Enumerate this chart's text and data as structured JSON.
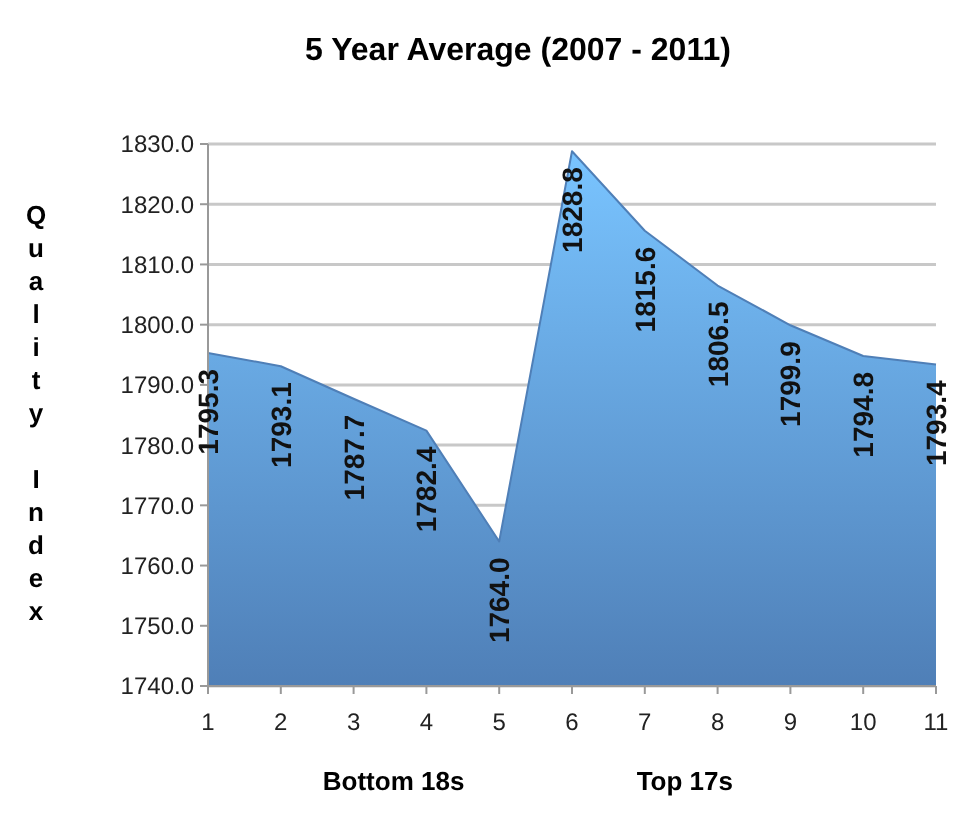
{
  "chart_data": {
    "type": "area",
    "title": "5 Year Average  (2007 - 2011)",
    "ylabel": "Quality Index",
    "categories": [
      "1",
      "2",
      "3",
      "4",
      "5",
      "6",
      "7",
      "8",
      "9",
      "10",
      "11"
    ],
    "values": [
      1795.3,
      1793.1,
      1787.7,
      1782.4,
      1764.0,
      1828.8,
      1815.6,
      1806.5,
      1799.9,
      1794.8,
      1793.4
    ],
    "color": "#5b93d3",
    "data_labels": true,
    "value_labels": [
      "1795.3",
      "1793.1",
      "1787.7",
      "1782.4",
      "1764.0",
      "1828.8",
      "1815.6",
      "1806.5",
      "1799.9",
      "1794.8",
      "1793.4"
    ],
    "ylim": [
      1740,
      1830
    ],
    "yticks": [
      {
        "value": 1740,
        "label": "1740.0"
      },
      {
        "value": 1750,
        "label": "1750.0"
      },
      {
        "value": 1760,
        "label": "1760.0"
      },
      {
        "value": 1770,
        "label": "1770.0"
      },
      {
        "value": 1780,
        "label": "1780.0"
      },
      {
        "value": 1790,
        "label": "1790.0"
      },
      {
        "value": 1800,
        "label": "1800.0"
      },
      {
        "value": 1810,
        "label": "1810.0"
      },
      {
        "value": 1820,
        "label": "1820.0"
      },
      {
        "value": 1830,
        "label": "1830.0"
      }
    ],
    "grid": "y",
    "annotations": [
      "Bottom 18s",
      "Top 17s"
    ]
  }
}
